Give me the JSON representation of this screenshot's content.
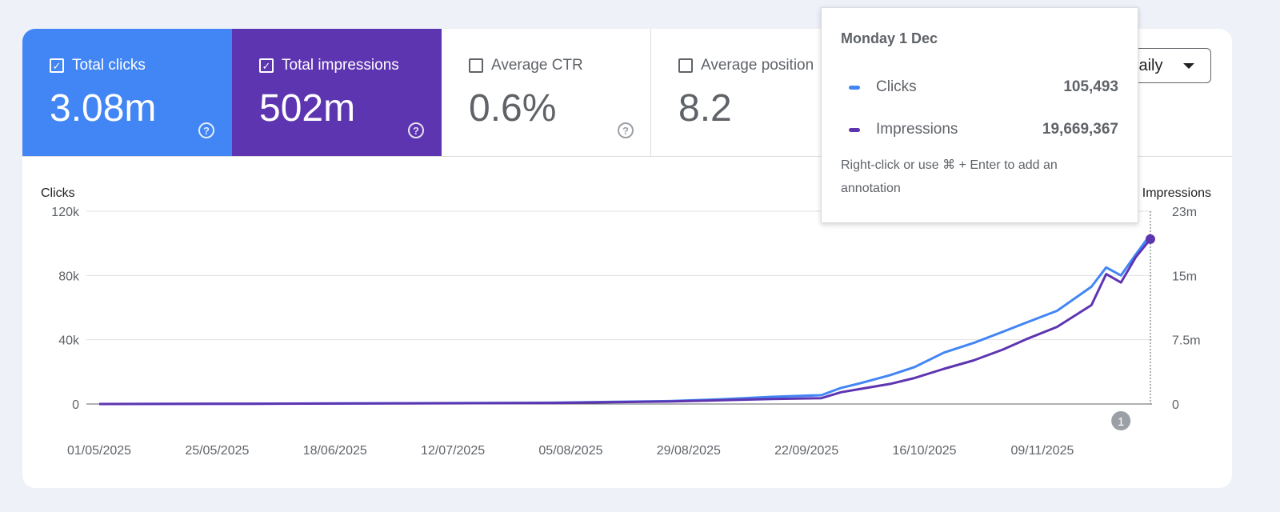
{
  "metrics": [
    {
      "label": "Total clicks",
      "value": "3.08m",
      "checked": true,
      "check": "✓"
    },
    {
      "label": "Total impressions",
      "value": "502m",
      "checked": true,
      "check": "✓"
    },
    {
      "label": "Average CTR",
      "value": "0.6%",
      "checked": false,
      "check": ""
    },
    {
      "label": "Average position",
      "value": "8.2",
      "checked": false,
      "check": ""
    }
  ],
  "help_glyph": "?",
  "dropdown": {
    "label": "Daily",
    "icon": "caret-down-icon"
  },
  "tooltip": {
    "title": "Monday 1 Dec",
    "rows": [
      {
        "name": "Clicks",
        "value": "105,493",
        "color": "#4285f4"
      },
      {
        "name": "Impressions",
        "value": "19,669,367",
        "color": "#5e35b1"
      }
    ],
    "note": "Right-click or use ⌘ + Enter to add an annotation"
  },
  "annotation_marker": "1",
  "chart_data": {
    "type": "line",
    "ylabel_left": "Clicks",
    "ylabel_right": "Impressions",
    "left_axis": {
      "ticks": [
        "0",
        "40k",
        "80k",
        "120k"
      ],
      "range": [
        0,
        120000
      ]
    },
    "right_axis": {
      "ticks": [
        "0",
        "7.5m",
        "15m",
        "23m"
      ],
      "range": [
        0,
        23000000
      ]
    },
    "x_tick_labels": [
      "01/05/2025",
      "25/05/2025",
      "18/06/2025",
      "12/07/2025",
      "05/08/2025",
      "29/08/2025",
      "22/09/2025",
      "16/10/2025",
      "09/11/2025"
    ],
    "grid": true,
    "series": [
      {
        "name": "Clicks",
        "color": "#4285f4",
        "axis": "left",
        "x": [
          "01/05/2025",
          "01/06/2025",
          "01/07/2025",
          "01/08/2025",
          "25/08/2025",
          "05/09/2025",
          "15/09/2025",
          "25/09/2025",
          "29/09/2025",
          "03/10/2025",
          "09/10/2025",
          "14/10/2025",
          "20/10/2025",
          "26/10/2025",
          "01/11/2025",
          "06/11/2025",
          "12/11/2025",
          "19/11/2025",
          "22/11/2025",
          "25/11/2025",
          "28/11/2025",
          "01/12/2025"
        ],
        "values": [
          0,
          200,
          500,
          800,
          1800,
          3000,
          4500,
          5500,
          10000,
          13000,
          18000,
          23000,
          32000,
          38000,
          45000,
          51000,
          58000,
          73000,
          85000,
          80000,
          93000,
          105493
        ]
      },
      {
        "name": "Impressions",
        "color": "#5e35b1",
        "axis": "right",
        "x": [
          "01/05/2025",
          "01/06/2025",
          "01/07/2025",
          "01/08/2025",
          "25/08/2025",
          "05/09/2025",
          "15/09/2025",
          "25/09/2025",
          "29/09/2025",
          "03/10/2025",
          "09/10/2025",
          "14/10/2025",
          "20/10/2025",
          "26/10/2025",
          "01/11/2025",
          "06/11/2025",
          "12/11/2025",
          "19/11/2025",
          "22/11/2025",
          "25/11/2025",
          "28/11/2025",
          "01/12/2025"
        ],
        "values": [
          0,
          30000,
          70000,
          120000,
          300000,
          450000,
          600000,
          700000,
          1400000,
          1800000,
          2400000,
          3100000,
          4200000,
          5200000,
          6500000,
          7800000,
          9200000,
          11800000,
          15500000,
          14500000,
          17500000,
          19669367
        ]
      }
    ]
  }
}
